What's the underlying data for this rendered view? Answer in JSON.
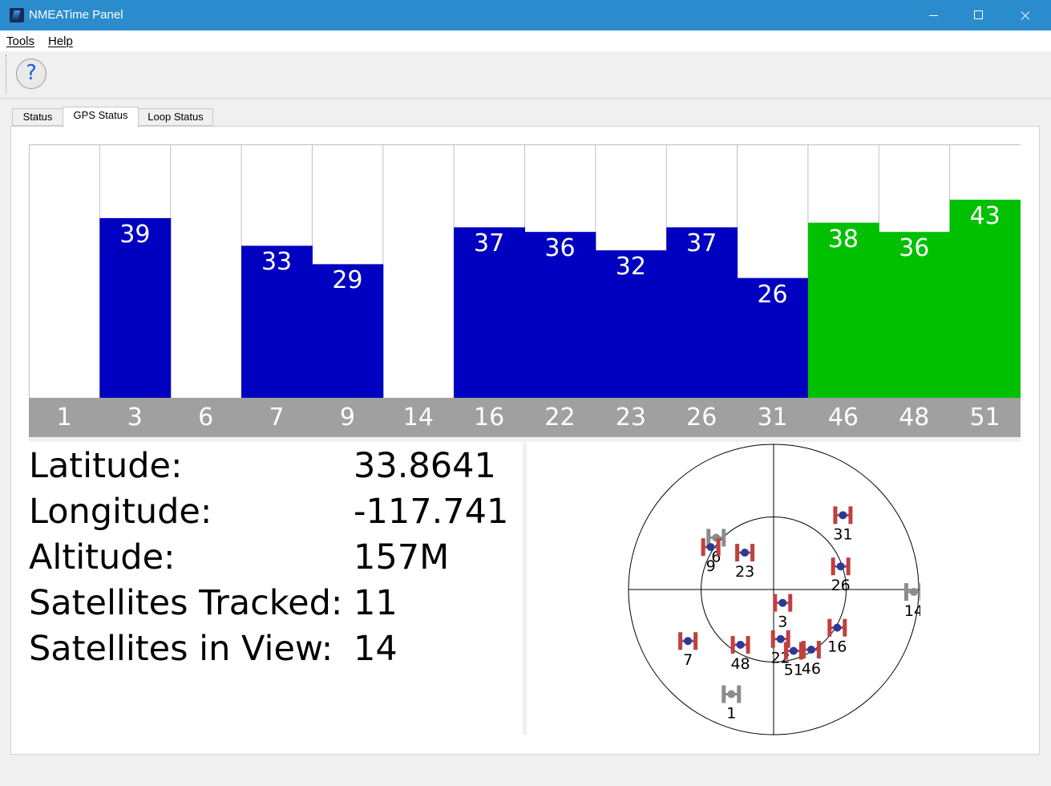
{
  "window": {
    "title": "NMEATime Panel"
  },
  "menu": [
    {
      "label": "Tools"
    },
    {
      "label": "Help"
    }
  ],
  "toolbar": {
    "help_glyph": "?"
  },
  "tabs": [
    {
      "label": "Status",
      "active": false
    },
    {
      "label": "GPS Status",
      "active": true
    },
    {
      "label": "Loop Status",
      "active": false
    }
  ],
  "colors": {
    "tracked": "#0000c0",
    "used": "#00c000",
    "strip": "#a0a0a0",
    "grid": "#c0c0c0",
    "sat_used": "#c04040",
    "sat_idle": "#8c8c8c",
    "sat_core": "#2a3a9a"
  },
  "chart_data": {
    "type": "bar",
    "categories": [
      "1",
      "3",
      "6",
      "7",
      "9",
      "14",
      "16",
      "22",
      "23",
      "26",
      "31",
      "46",
      "48",
      "51"
    ],
    "values": [
      null,
      39,
      null,
      33,
      29,
      null,
      37,
      36,
      32,
      37,
      26,
      38,
      36,
      43
    ],
    "used_in_fix": [
      false,
      false,
      false,
      false,
      false,
      false,
      false,
      false,
      false,
      false,
      false,
      true,
      true,
      true
    ],
    "ylim": [
      0,
      55
    ]
  },
  "info": {
    "rows": [
      {
        "label": "Latitude:",
        "value": "33.8641"
      },
      {
        "label": "Longitude:",
        "value": "-117.741"
      },
      {
        "label": "Altitude:",
        "value": "157M"
      },
      {
        "label": "Satellites Tracked:",
        "value": "11"
      },
      {
        "label": "Satellites in View:",
        "value": "14"
      }
    ]
  },
  "sky_plot": {
    "satellites": [
      {
        "prn": "6",
        "elevation": 42,
        "azimuth": 312,
        "tracked": false
      },
      {
        "prn": "9",
        "elevation": 43,
        "azimuth": 304,
        "tracked": true
      },
      {
        "prn": "23",
        "elevation": 61,
        "azimuth": 322,
        "tracked": true
      },
      {
        "prn": "31",
        "elevation": 27,
        "azimuth": 43,
        "tracked": true
      },
      {
        "prn": "26",
        "elevation": 46,
        "azimuth": 71,
        "tracked": true
      },
      {
        "prn": "14",
        "elevation": 3,
        "azimuth": 91,
        "tracked": false
      },
      {
        "prn": "3",
        "elevation": 80,
        "azimuth": 146,
        "tracked": true
      },
      {
        "prn": "16",
        "elevation": 44,
        "azimuth": 121,
        "tracked": true
      },
      {
        "prn": "22",
        "elevation": 59,
        "azimuth": 172,
        "tracked": true
      },
      {
        "prn": "51",
        "elevation": 50,
        "azimuth": 162,
        "tracked": true
      },
      {
        "prn": "46",
        "elevation": 46,
        "azimuth": 148,
        "tracked": true
      },
      {
        "prn": "48",
        "elevation": 50,
        "azimuth": 211,
        "tracked": true
      },
      {
        "prn": "7",
        "elevation": 28,
        "azimuth": 239,
        "tracked": true
      },
      {
        "prn": "1",
        "elevation": 20,
        "azimuth": 202,
        "tracked": false
      }
    ]
  }
}
